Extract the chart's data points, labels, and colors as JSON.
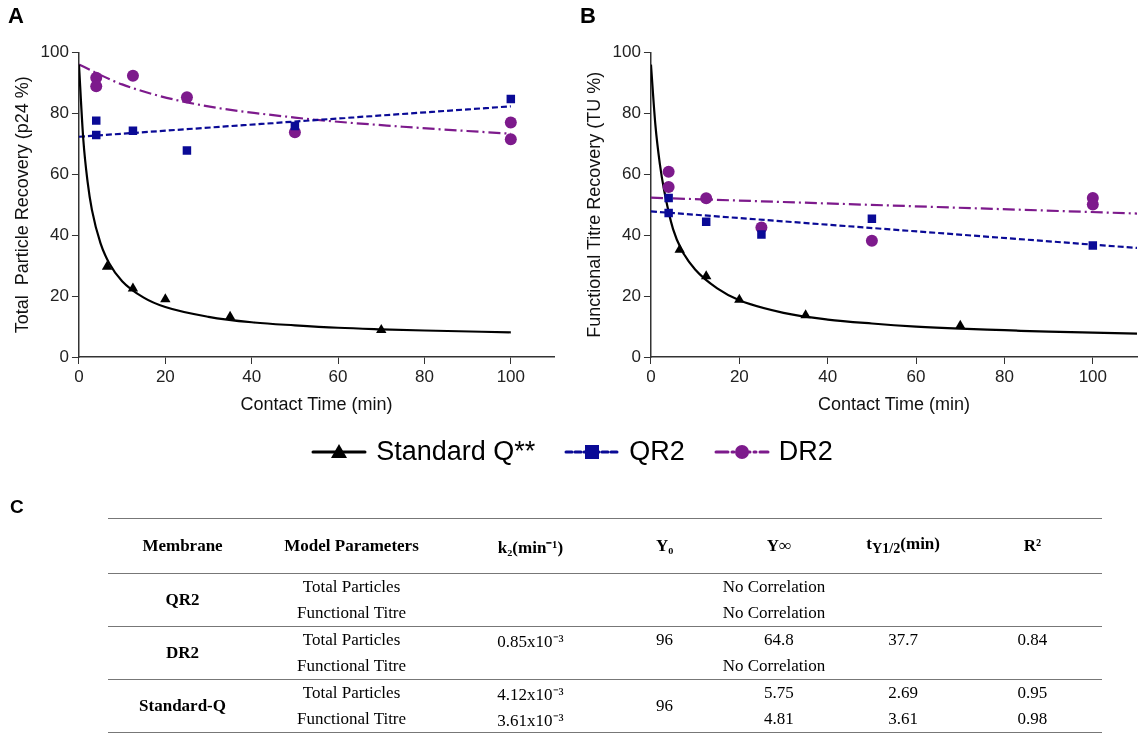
{
  "chart_data": [
    {
      "type": "scatter",
      "title": "A",
      "xlabel": "Contact Time (min)",
      "ylabel": "Total  Particle Recovery (p24 %)",
      "xlim": [
        0,
        110
      ],
      "ylim": [
        0,
        100
      ],
      "xticks": [
        0,
        20,
        40,
        60,
        80,
        100
      ],
      "yticks": [
        0,
        20,
        40,
        60,
        80,
        100
      ],
      "grid": false,
      "legend": "bottom",
      "series": [
        {
          "name": "Standard Q**",
          "color": "#000000",
          "marker": "triangle",
          "x": [
            6.5,
            12.5,
            20,
            35,
            70
          ],
          "values": [
            29.6,
            22.5,
            19,
            13.2,
            8.9
          ]
        },
        {
          "name": "QR2",
          "color": "#0a0a96",
          "marker": "square",
          "x": [
            4,
            4,
            12.5,
            25,
            50,
            100
          ],
          "values": [
            77.6,
            72.9,
            74.3,
            67.8,
            75.8,
            84.7
          ]
        },
        {
          "name": "DR2",
          "color": "#7d1a8c",
          "marker": "circle",
          "x": [
            4,
            4,
            12.5,
            25,
            50,
            100,
            100
          ],
          "values": [
            91.7,
            88.9,
            92.3,
            85.3,
            73.8,
            77,
            71.5
          ]
        },
        {
          "type": "line",
          "color": "#000000",
          "line_style": "solid",
          "marker": "none",
          "x": [
            0,
            1,
            2,
            3,
            5,
            7,
            10,
            15,
            20,
            30,
            40,
            50,
            60,
            70,
            80,
            100
          ],
          "values": [
            96,
            71.5,
            57.5,
            48.3,
            37.3,
            30.8,
            24.9,
            19.5,
            16.4,
            13.2,
            11.4,
            10.4,
            9.6,
            9.1,
            8.7,
            8.1
          ]
        },
        {
          "type": "line",
          "color": "#0a0a96",
          "line_style": "dashed",
          "marker": "none",
          "x": [
            0,
            100
          ],
          "values": [
            72.3,
            82.3
          ]
        },
        {
          "type": "line",
          "color": "#7d1a8c",
          "line_style": "dashdot",
          "marker": "none",
          "x": [
            0,
            10,
            25,
            50,
            75,
            100
          ],
          "values": [
            96,
            89.5,
            83.6,
            78.6,
            75.6,
            73.3
          ]
        }
      ]
    },
    {
      "type": "scatter",
      "title": "B",
      "xlabel": "Contact Time (min)",
      "ylabel": "Functional Titre Recovery (TU %)",
      "xlim": [
        0,
        110
      ],
      "ylim": [
        0,
        100
      ],
      "xticks": [
        0,
        20,
        40,
        60,
        80,
        100
      ],
      "yticks": [
        0,
        20,
        40,
        60,
        80,
        100
      ],
      "grid": false,
      "series": [
        {
          "color": "#000000",
          "marker": "triangle",
          "x": [
            6.5,
            12.5,
            20,
            35,
            70
          ],
          "values": [
            35.2,
            26.5,
            18.8,
            13.7,
            10.3
          ]
        },
        {
          "color": "#0a0a96",
          "marker": "square",
          "x": [
            4,
            4,
            12.5,
            25,
            50,
            100
          ],
          "values": [
            52.2,
            47.3,
            44.4,
            40.2,
            45.4,
            36.6
          ]
        },
        {
          "color": "#7d1a8c",
          "marker": "circle",
          "x": [
            4,
            4,
            12.5,
            25,
            50,
            100,
            100
          ],
          "values": [
            60.8,
            55.8,
            52.1,
            42.5,
            38.2,
            52.2,
            50.1
          ]
        },
        {
          "type": "line",
          "color": "#000000",
          "line_style": "solid",
          "marker": "none",
          "x": [
            0,
            1,
            2,
            3,
            5,
            7,
            10,
            15,
            20,
            30,
            40,
            50,
            60,
            70,
            80,
            90,
            100,
            110
          ],
          "values": [
            96,
            76.2,
            63.5,
            54.6,
            42,
            35,
            28.7,
            22.5,
            18.6,
            14.5,
            12.3,
            11,
            10,
            9.3,
            8.8,
            8.3,
            8,
            7.7
          ]
        },
        {
          "type": "line",
          "color": "#0a0a96",
          "line_style": "dashed",
          "marker": "none",
          "x": [
            0,
            110
          ],
          "values": [
            47.8,
            35.8
          ]
        },
        {
          "type": "line",
          "color": "#7d1a8c",
          "line_style": "dashdot",
          "marker": "none",
          "x": [
            0,
            110
          ],
          "values": [
            52.3,
            47.1
          ]
        }
      ]
    },
    {
      "type": "other",
      "title": "C",
      "annotations": [
        "Membrane",
        "Model Parameters",
        "k₂(min⁻¹)",
        "Y₀",
        "Y∞",
        "t$_{Y1/2}$(min)",
        "R²",
        "QR2",
        "Total Particles",
        "No Correlation",
        "Functional Titre",
        "No Correlation",
        "DR2",
        "Total Particles",
        "0.85x10⁻³",
        "96",
        "64.8",
        "37.7",
        "0.84",
        "Functional Titre",
        "No Correlation",
        "Standard-Q",
        "Total Particles",
        "4.12x10⁻³",
        "96",
        "5.75",
        "2.69",
        "0.95",
        "Functional Titre",
        "3.61x10⁻³",
        "4.81",
        "3.61",
        "0.98"
      ]
    }
  ]
}
